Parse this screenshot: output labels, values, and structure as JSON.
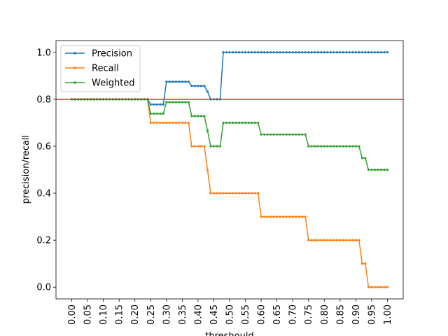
{
  "chart_data": {
    "type": "line",
    "xlabel": "threshould",
    "ylabel": "precision/recall",
    "xlim": [
      -0.05,
      1.05
    ],
    "ylim": [
      -0.05,
      1.05
    ],
    "x_ticks": [
      "0.00",
      "0.05",
      "0.10",
      "0.15",
      "0.20",
      "0.25",
      "0.30",
      "0.35",
      "0.40",
      "0.45",
      "0.50",
      "0.55",
      "0.60",
      "0.65",
      "0.70",
      "0.75",
      "0.80",
      "0.85",
      "0.90",
      "0.95",
      "1.00"
    ],
    "y_ticks": [
      "0.0",
      "0.2",
      "0.4",
      "0.6",
      "0.8",
      "1.0"
    ],
    "x_tick_values": [
      0.0,
      0.05,
      0.1,
      0.15,
      0.2,
      0.25,
      0.3,
      0.35,
      0.4,
      0.45,
      0.5,
      0.55,
      0.6,
      0.65,
      0.7,
      0.75,
      0.8,
      0.85,
      0.9,
      0.95,
      1.0
    ],
    "y_tick_values": [
      0.0,
      0.2,
      0.4,
      0.6,
      0.8,
      1.0
    ],
    "x_step": 0.01,
    "hline": {
      "y": 0.8,
      "color": "#d62728"
    },
    "legend_position": "top-left",
    "series": [
      {
        "name": "Precision",
        "color": "#1f77b4",
        "segments": [
          {
            "from": 0.0,
            "to": 0.24,
            "y": 0.8
          },
          {
            "from": 0.25,
            "to": 0.29,
            "y": 0.778
          },
          {
            "from": 0.3,
            "to": 0.37,
            "y": 0.875
          },
          {
            "from": 0.38,
            "to": 0.42,
            "y": 0.857
          },
          {
            "from": 0.43,
            "to": 0.43,
            "y": 0.833
          },
          {
            "from": 0.44,
            "to": 0.47,
            "y": 0.8
          },
          {
            "from": 0.48,
            "to": 1.0,
            "y": 1.0
          }
        ]
      },
      {
        "name": "Recall",
        "color": "#ff7f0e",
        "segments": [
          {
            "from": 0.0,
            "to": 0.24,
            "y": 0.8
          },
          {
            "from": 0.25,
            "to": 0.37,
            "y": 0.7
          },
          {
            "from": 0.38,
            "to": 0.42,
            "y": 0.6
          },
          {
            "from": 0.43,
            "to": 0.43,
            "y": 0.5
          },
          {
            "from": 0.44,
            "to": 0.59,
            "y": 0.4
          },
          {
            "from": 0.6,
            "to": 0.74,
            "y": 0.3
          },
          {
            "from": 0.75,
            "to": 0.91,
            "y": 0.2
          },
          {
            "from": 0.92,
            "to": 0.93,
            "y": 0.1
          },
          {
            "from": 0.94,
            "to": 1.0,
            "y": 0.0
          }
        ]
      },
      {
        "name": "Weighted",
        "color": "#2ca02c",
        "segments": [
          {
            "from": 0.0,
            "to": 0.24,
            "y": 0.8
          },
          {
            "from": 0.25,
            "to": 0.29,
            "y": 0.739
          },
          {
            "from": 0.3,
            "to": 0.37,
            "y": 0.7875
          },
          {
            "from": 0.38,
            "to": 0.42,
            "y": 0.7285
          },
          {
            "from": 0.43,
            "to": 0.43,
            "y": 0.6665
          },
          {
            "from": 0.44,
            "to": 0.47,
            "y": 0.6
          },
          {
            "from": 0.48,
            "to": 0.59,
            "y": 0.7
          },
          {
            "from": 0.6,
            "to": 0.74,
            "y": 0.65
          },
          {
            "from": 0.75,
            "to": 0.91,
            "y": 0.6
          },
          {
            "from": 0.92,
            "to": 0.93,
            "y": 0.55
          },
          {
            "from": 0.94,
            "to": 1.0,
            "y": 0.5
          }
        ]
      }
    ]
  }
}
